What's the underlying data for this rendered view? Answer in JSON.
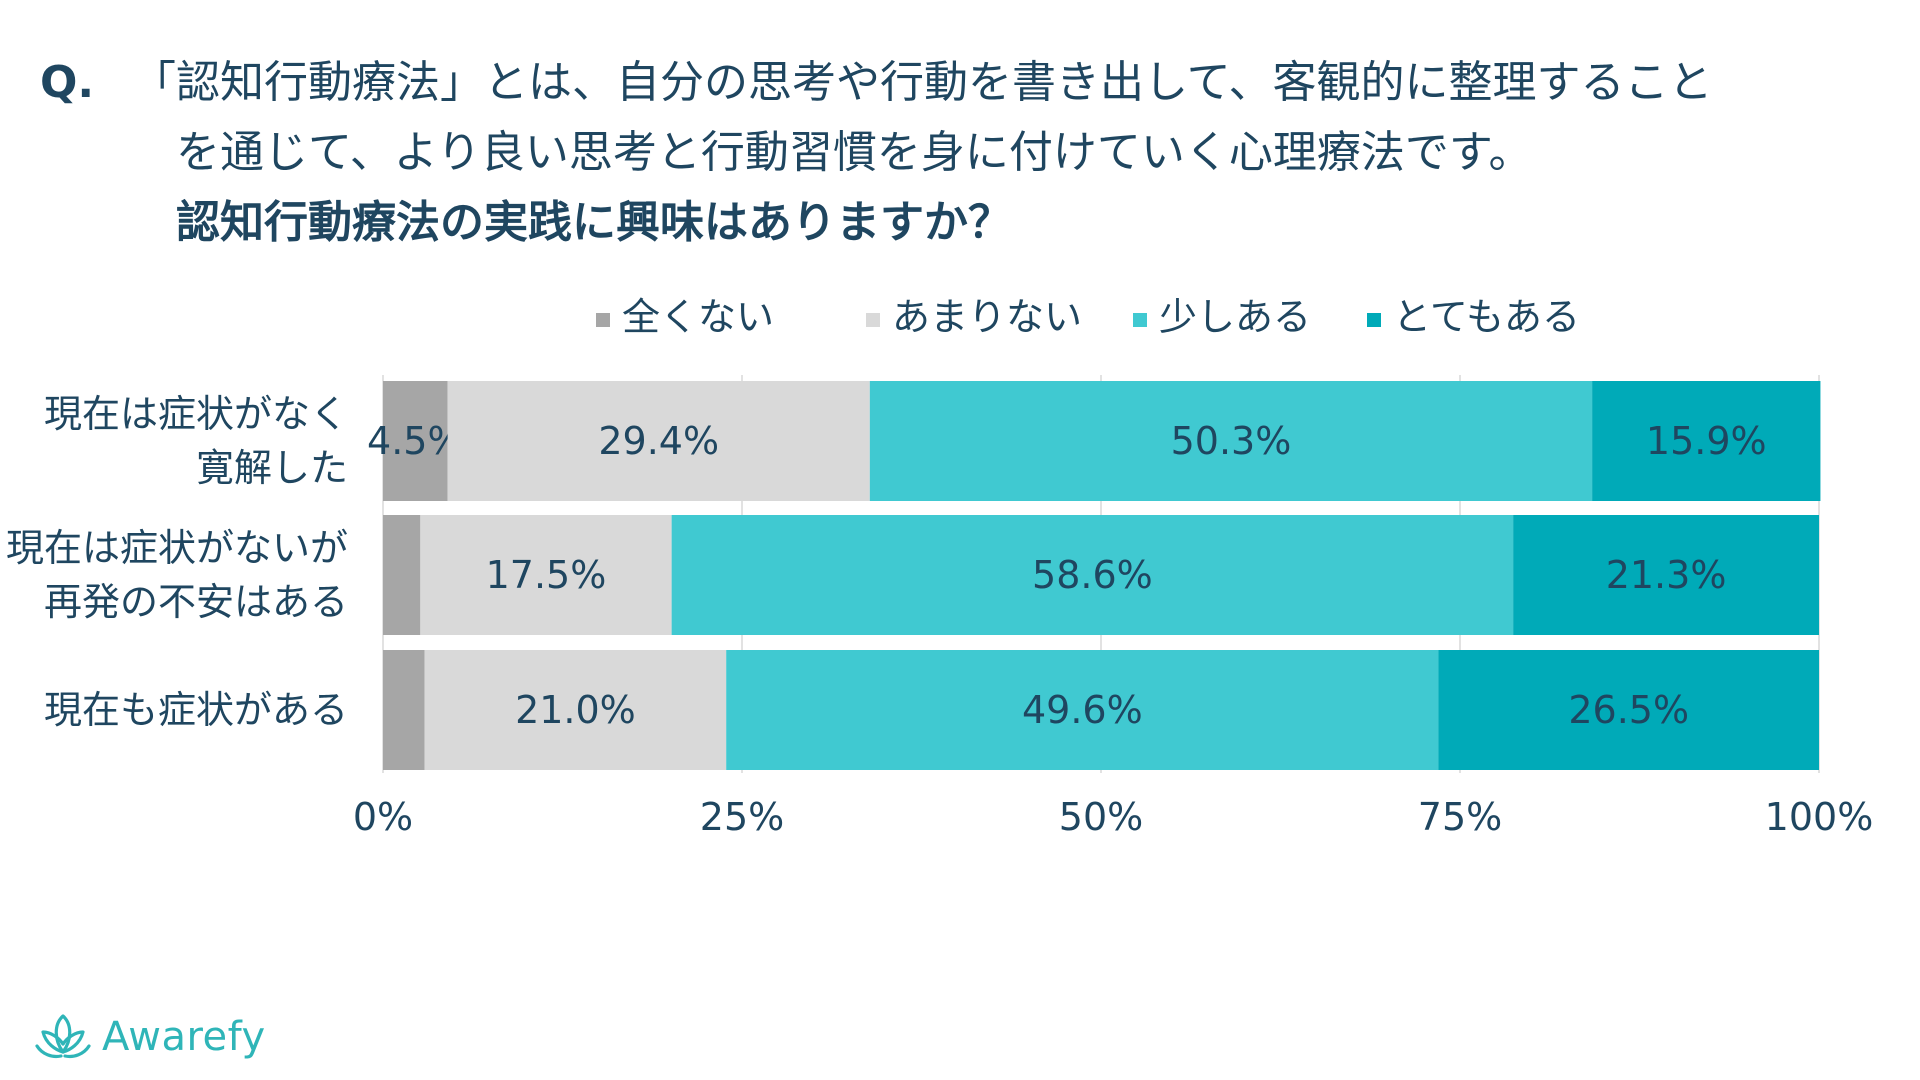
{
  "question": {
    "prefix": "Q.",
    "line1": "「認知行動療法」とは、自分の思考や行動を書き出して、客観的に整理すること",
    "line2": "を通じて、より良い思考と行動習慣を身に付けていく心理療法です。",
    "line3": "認知行動療法の実践に興味はありますか？"
  },
  "chart_data": {
    "type": "bar",
    "orientation": "horizontal",
    "stacked": "100%",
    "title": "認知行動療法の実践に興味はありますか？",
    "categories": [
      [
        "現在は症状がなく",
        "寛解した"
      ],
      [
        "現在は症状がないが",
        "再発の不安はある"
      ],
      [
        "現在も症状がある"
      ]
    ],
    "series": [
      {
        "name": "全くない",
        "color": "#a6a6a6",
        "values": [
          4.5,
          2.6,
          2.9
        ],
        "labels": [
          "4.5%",
          "",
          ""
        ]
      },
      {
        "name": "あまりない",
        "color": "#d9d9d9",
        "values": [
          29.4,
          17.5,
          21.0
        ],
        "labels": [
          "29.4%",
          "17.5%",
          "21.0%"
        ]
      },
      {
        "name": "少しある",
        "color": "#40c9d1",
        "values": [
          50.3,
          58.6,
          49.6
        ],
        "labels": [
          "50.3%",
          "58.6%",
          "49.6%"
        ]
      },
      {
        "name": "とてもある",
        "color": "#00aab8",
        "values": [
          15.9,
          21.3,
          26.5
        ],
        "labels": [
          "15.9%",
          "21.3%",
          "26.5%"
        ]
      }
    ],
    "xlim": [
      0,
      100
    ],
    "xticks": [
      "0%",
      "25%",
      "50%",
      "75%",
      "100%"
    ],
    "grid": true,
    "legend": "top"
  },
  "brand": {
    "name": "Awarefy",
    "color": "#2fb5b8"
  }
}
